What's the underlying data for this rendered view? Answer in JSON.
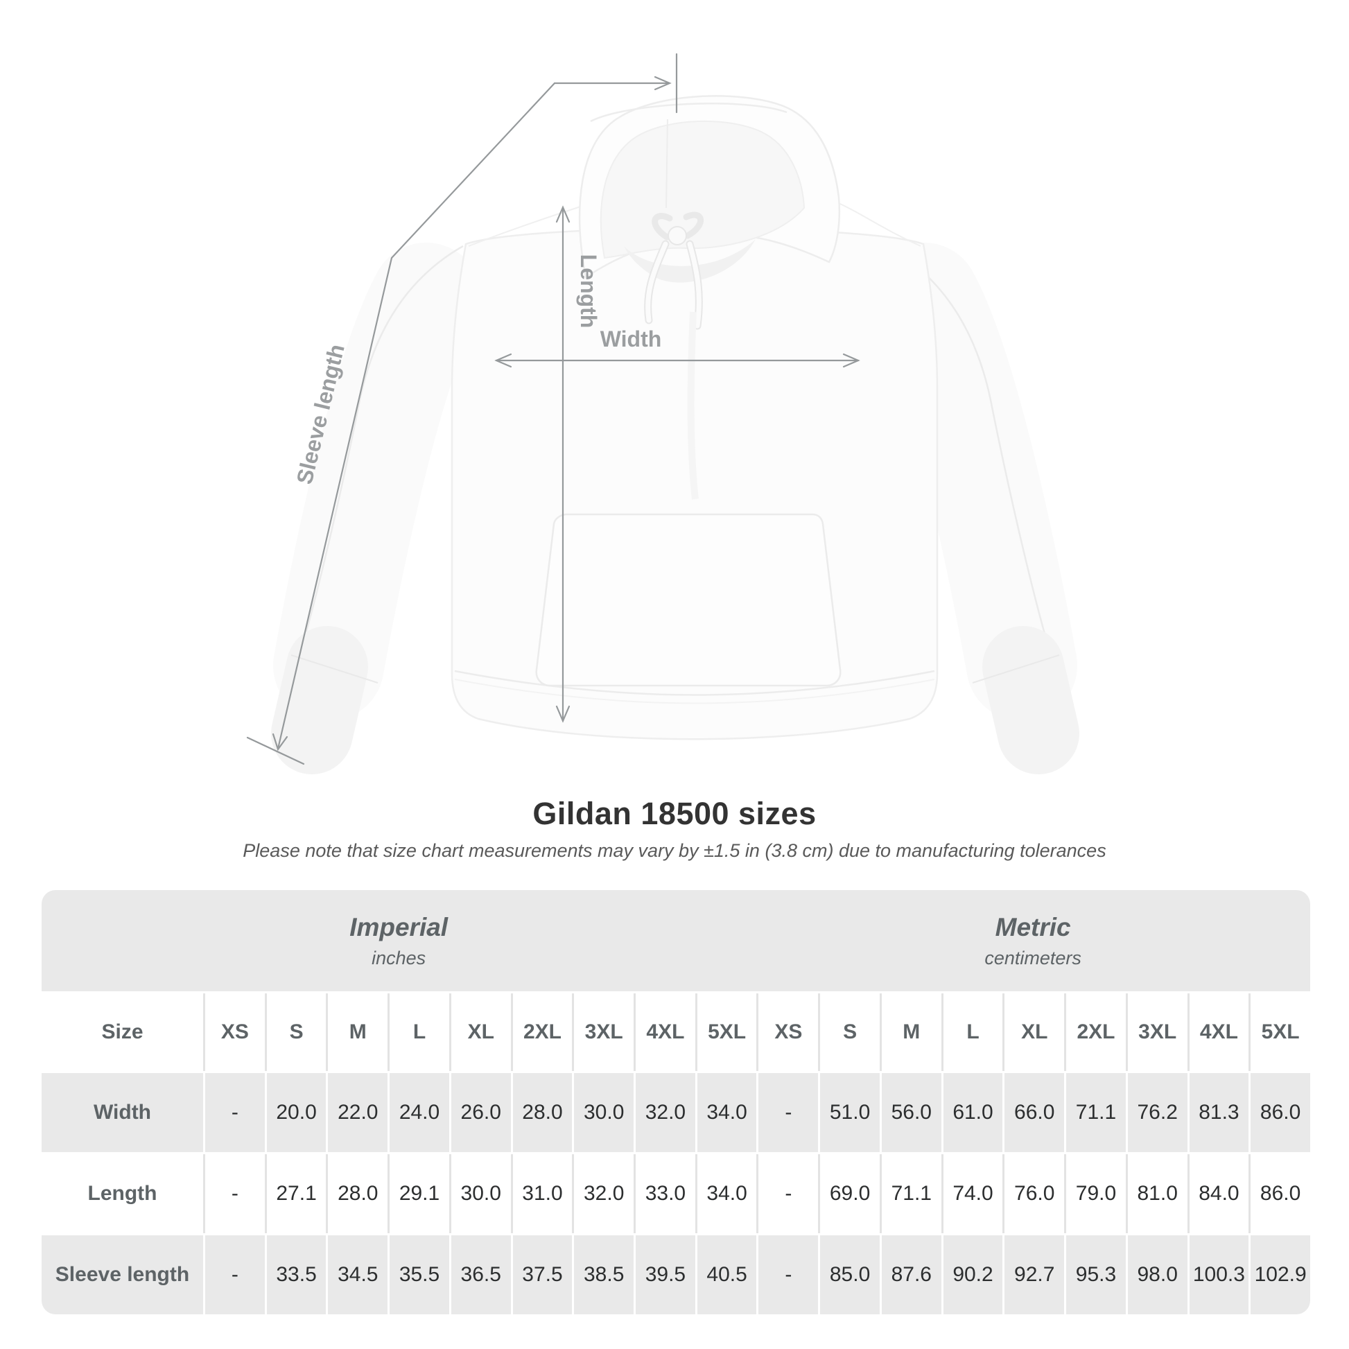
{
  "figure": {
    "labels": {
      "sleeve_length": "Sleeve length",
      "length": "Length",
      "width": "Width"
    }
  },
  "heading": {
    "title": "Gildan 18500 sizes",
    "subtitle": "Please note that size chart measurements may vary by ±1.5 in (3.8 cm) due to manufacturing tolerances"
  },
  "table": {
    "unit_sections": [
      {
        "name": "Imperial",
        "unit": "inches"
      },
      {
        "name": "Metric",
        "unit": "centimeters"
      }
    ],
    "size_header": "Size",
    "sizes": [
      "XS",
      "S",
      "M",
      "L",
      "XL",
      "2XL",
      "3XL",
      "4XL",
      "5XL"
    ],
    "rows": [
      {
        "label": "Width",
        "imperial": [
          "-",
          "20.0",
          "22.0",
          "24.0",
          "26.0",
          "28.0",
          "30.0",
          "32.0",
          "34.0"
        ],
        "metric": [
          "-",
          "51.0",
          "56.0",
          "61.0",
          "66.0",
          "71.1",
          "76.2",
          "81.3",
          "86.0"
        ]
      },
      {
        "label": "Length",
        "imperial": [
          "-",
          "27.1",
          "28.0",
          "29.1",
          "30.0",
          "31.0",
          "32.0",
          "33.0",
          "34.0"
        ],
        "metric": [
          "-",
          "69.0",
          "71.1",
          "74.0",
          "76.0",
          "79.0",
          "81.0",
          "84.0",
          "86.0"
        ]
      },
      {
        "label": "Sleeve length",
        "imperial": [
          "-",
          "33.5",
          "34.5",
          "35.5",
          "36.5",
          "37.5",
          "38.5",
          "39.5",
          "40.5"
        ],
        "metric": [
          "-",
          "85.0",
          "87.6",
          "90.2",
          "92.7",
          "95.3",
          "98.0",
          "100.3",
          "102.9"
        ]
      }
    ]
  },
  "colors": {
    "table_gray": "#e9e9e9",
    "divider_gray": "#e3e3e3",
    "header_text": "#5d6366",
    "value_text": "#2c2e2f",
    "title_text": "#333333",
    "annotation": "#95999b"
  },
  "chart_data": {
    "type": "table",
    "title": "Gildan 18500 sizes",
    "note": "Please note that size chart measurements may vary by ±1.5 in (3.8 cm) due to manufacturing tolerances",
    "column_groups": [
      {
        "name": "Imperial",
        "unit": "inches"
      },
      {
        "name": "Metric",
        "unit": "centimeters"
      }
    ],
    "columns": [
      "XS",
      "S",
      "M",
      "L",
      "XL",
      "2XL",
      "3XL",
      "4XL",
      "5XL"
    ],
    "rows": [
      {
        "label": "Width",
        "imperial": [
          null,
          20.0,
          22.0,
          24.0,
          26.0,
          28.0,
          30.0,
          32.0,
          34.0
        ],
        "metric": [
          null,
          51.0,
          56.0,
          61.0,
          66.0,
          71.1,
          76.2,
          81.3,
          86.0
        ]
      },
      {
        "label": "Length",
        "imperial": [
          null,
          27.1,
          28.0,
          29.1,
          30.0,
          31.0,
          32.0,
          33.0,
          34.0
        ],
        "metric": [
          null,
          69.0,
          71.1,
          74.0,
          76.0,
          79.0,
          81.0,
          84.0,
          86.0
        ]
      },
      {
        "label": "Sleeve length",
        "imperial": [
          null,
          33.5,
          34.5,
          35.5,
          36.5,
          37.5,
          38.5,
          39.5,
          40.5
        ],
        "metric": [
          null,
          85.0,
          87.6,
          90.2,
          92.7,
          95.3,
          98.0,
          100.3,
          102.9
        ]
      }
    ]
  }
}
